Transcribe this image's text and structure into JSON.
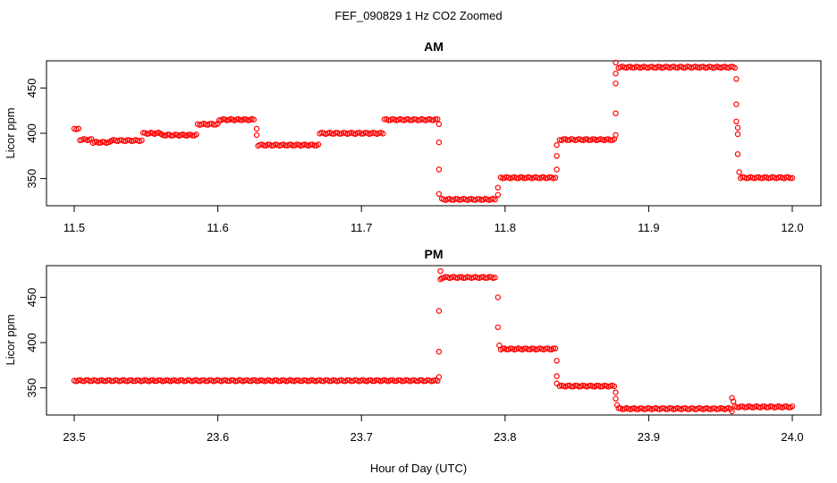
{
  "figure": {
    "title": "FEF_090829  1 Hz CO2 Zoomed",
    "xlabel": "Hour of Day (UTC)"
  },
  "chart_data": [
    {
      "type": "scatter",
      "title": "AM",
      "xlabel": "",
      "ylabel": "Licor ppm",
      "xlim": [
        11.5,
        12.0
      ],
      "ylim": [
        320,
        480
      ],
      "xticks": [
        "11.5",
        "11.6",
        "11.7",
        "11.8",
        "11.9",
        "12.0"
      ],
      "yticks": [
        "350",
        "400",
        "450"
      ],
      "marker_color": "#ff0000",
      "segments": [
        {
          "x_start": 11.5,
          "x_end": 11.503,
          "y": 405
        },
        {
          "x_start": 11.504,
          "x_end": 11.512,
          "y": 393
        },
        {
          "x_start": 11.513,
          "x_end": 11.525,
          "y": 390
        },
        {
          "x_start": 11.526,
          "x_end": 11.547,
          "y": 392
        },
        {
          "x_start": 11.548,
          "x_end": 11.56,
          "y": 400
        },
        {
          "x_start": 11.561,
          "x_end": 11.585,
          "y": 398
        },
        {
          "x_start": 11.586,
          "x_end": 11.6,
          "y": 410
        },
        {
          "x_start": 11.601,
          "x_end": 11.625,
          "y": 415
        },
        {
          "x_start": 11.628,
          "x_end": 11.67,
          "y": 387
        },
        {
          "x_start": 11.671,
          "x_end": 11.715,
          "y": 400
        },
        {
          "x_start": 11.716,
          "x_end": 11.753,
          "y": 415
        },
        {
          "x_start": 11.756,
          "x_end": 11.793,
          "y": 327
        },
        {
          "x_start": 11.797,
          "x_end": 11.835,
          "y": 351
        },
        {
          "x_start": 11.838,
          "x_end": 11.876,
          "y": 393
        },
        {
          "x_start": 11.879,
          "x_end": 11.96,
          "y": 473
        },
        {
          "x_start": 11.964,
          "x_end": 12.0,
          "y": 351
        }
      ],
      "transitions": [
        {
          "x": 11.627,
          "y": 398
        },
        {
          "x": 11.627,
          "y": 405
        },
        {
          "x": 11.754,
          "y": 410
        },
        {
          "x": 11.754,
          "y": 390
        },
        {
          "x": 11.754,
          "y": 360
        },
        {
          "x": 11.754,
          "y": 333
        },
        {
          "x": 11.795,
          "y": 332
        },
        {
          "x": 11.795,
          "y": 340
        },
        {
          "x": 11.836,
          "y": 360
        },
        {
          "x": 11.836,
          "y": 375
        },
        {
          "x": 11.836,
          "y": 387
        },
        {
          "x": 11.877,
          "y": 398
        },
        {
          "x": 11.877,
          "y": 422
        },
        {
          "x": 11.877,
          "y": 455
        },
        {
          "x": 11.877,
          "y": 466
        },
        {
          "x": 11.877,
          "y": 478
        },
        {
          "x": 11.961,
          "y": 460
        },
        {
          "x": 11.961,
          "y": 432
        },
        {
          "x": 11.961,
          "y": 413
        },
        {
          "x": 11.962,
          "y": 406
        },
        {
          "x": 11.962,
          "y": 399
        },
        {
          "x": 11.962,
          "y": 377
        },
        {
          "x": 11.963,
          "y": 357
        }
      ]
    },
    {
      "type": "scatter",
      "title": "PM",
      "xlabel": "",
      "ylabel": "Licor ppm",
      "xlim": [
        23.5,
        24.0
      ],
      "ylim": [
        320,
        485
      ],
      "xticks": [
        "23.5",
        "23.6",
        "23.7",
        "23.8",
        "23.9",
        "24.0"
      ],
      "yticks": [
        "350",
        "400",
        "450"
      ],
      "marker_color": "#ff0000",
      "segments": [
        {
          "x_start": 23.5,
          "x_end": 23.753,
          "y": 358
        },
        {
          "x_start": 23.756,
          "x_end": 23.793,
          "y": 472
        },
        {
          "x_start": 23.797,
          "x_end": 23.835,
          "y": 393
        },
        {
          "x_start": 23.838,
          "x_end": 23.876,
          "y": 352
        },
        {
          "x_start": 23.879,
          "x_end": 23.957,
          "y": 327
        },
        {
          "x_start": 23.96,
          "x_end": 24.0,
          "y": 329
        }
      ],
      "transitions": [
        {
          "x": 23.754,
          "y": 362
        },
        {
          "x": 23.754,
          "y": 390
        },
        {
          "x": 23.754,
          "y": 435
        },
        {
          "x": 23.755,
          "y": 470
        },
        {
          "x": 23.755,
          "y": 479
        },
        {
          "x": 23.795,
          "y": 450
        },
        {
          "x": 23.795,
          "y": 417
        },
        {
          "x": 23.796,
          "y": 397
        },
        {
          "x": 23.836,
          "y": 380
        },
        {
          "x": 23.836,
          "y": 363
        },
        {
          "x": 23.836,
          "y": 355
        },
        {
          "x": 23.877,
          "y": 345
        },
        {
          "x": 23.877,
          "y": 338
        },
        {
          "x": 23.878,
          "y": 331
        },
        {
          "x": 23.958,
          "y": 324
        },
        {
          "x": 23.958,
          "y": 339
        },
        {
          "x": 23.959,
          "y": 335
        }
      ]
    }
  ]
}
